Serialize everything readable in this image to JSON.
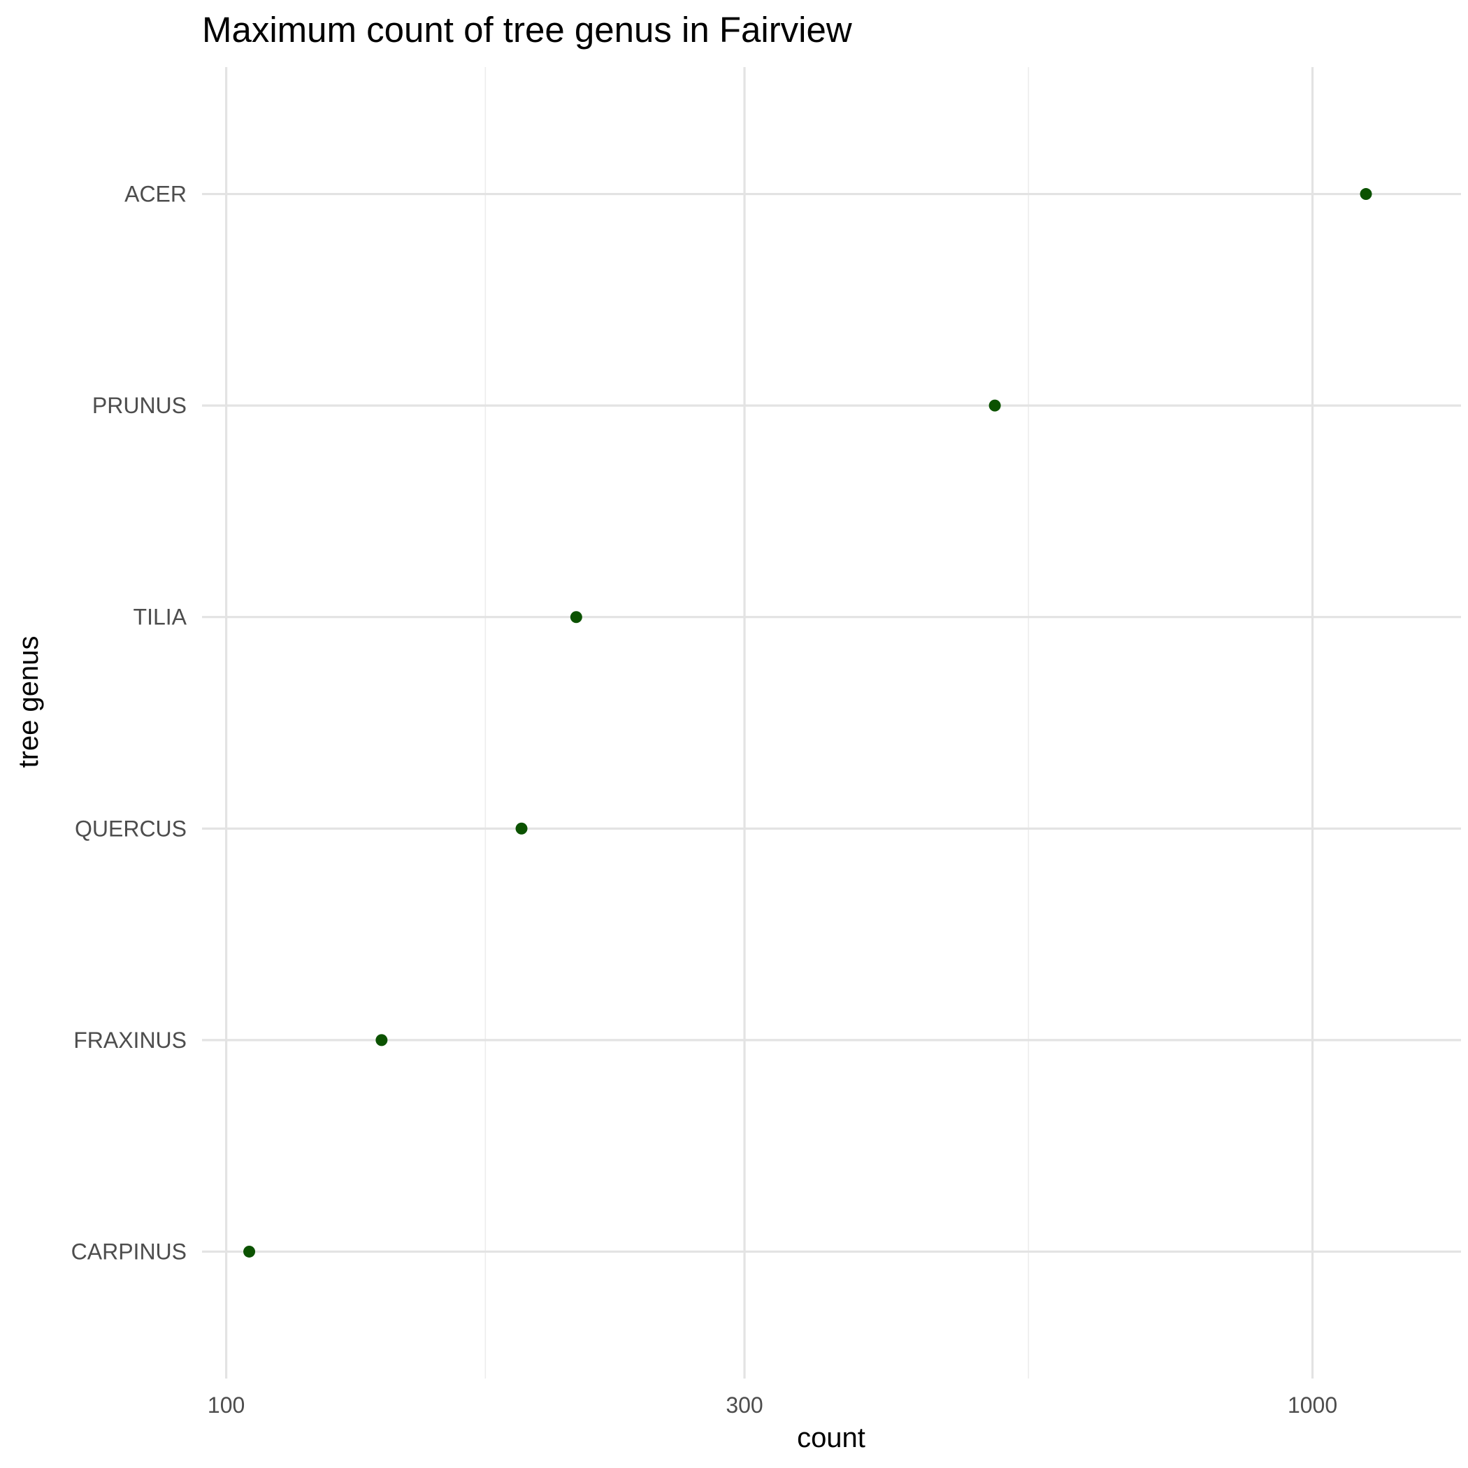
{
  "chart_data": {
    "type": "scatter",
    "title": "Maximum count of tree genus in Fairview",
    "xlabel": "count",
    "ylabel": "tree genus",
    "x_scale": "log10",
    "xlim": [
      95,
      1370
    ],
    "x_ticks": [
      100,
      300,
      1000
    ],
    "x_tick_labels": [
      "100",
      "300",
      "1000"
    ],
    "x_minor_ticks": [
      173.2,
      547.7
    ],
    "categories": [
      "ACER",
      "PRUNUS",
      "TILIA",
      "QUERCUS",
      "FRAXINUS",
      "CARPINUS"
    ],
    "values": [
      1120,
      510,
      210,
      187,
      139,
      105
    ],
    "point_color": "#0b5200",
    "grid": true,
    "legend": "none"
  }
}
